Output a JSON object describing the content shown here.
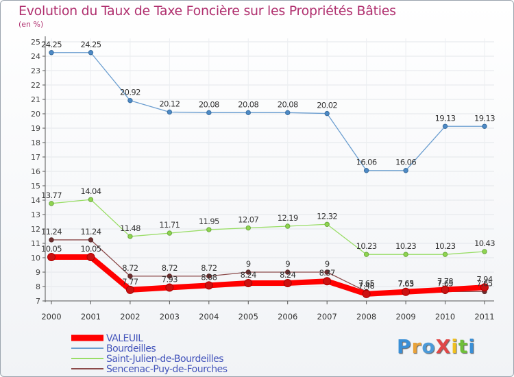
{
  "title": "Evolution du Taux de Taxe Foncière sur les Propriétés Bâties",
  "unit": "(en %)",
  "brand": "ProXiti",
  "chart_data": {
    "type": "line",
    "title": "Evolution du Taux de Taxe Foncière sur les Propriétés Bâties",
    "ylabel": "(en %)",
    "xlabel": "",
    "ylim": [
      7,
      25
    ],
    "yticks": [
      7,
      8,
      9,
      10,
      11,
      12,
      13,
      14,
      15,
      16,
      17,
      18,
      19,
      20,
      21,
      22,
      23,
      24,
      25
    ],
    "categories": [
      "2000",
      "2001",
      "2002",
      "2003",
      "2004",
      "2005",
      "2006",
      "2007",
      "2008",
      "2009",
      "2010",
      "2011"
    ],
    "legend_position": "bottom-left",
    "series": [
      {
        "name": "VALEUIL",
        "color": "#ff0000",
        "values": [
          10.05,
          10.05,
          7.77,
          7.93,
          8.08,
          8.24,
          8.24,
          8.37,
          7.48,
          7.63,
          7.78,
          7.94
        ],
        "labels": [
          "10.05",
          "10.05",
          "7.77",
          "7.93",
          "8.08",
          "8.24",
          "8.24",
          "8.37",
          "7.48",
          "7.63",
          "7.78",
          "7.94"
        ]
      },
      {
        "name": "Bourdeilles",
        "color": "#6b9ed0",
        "values": [
          24.25,
          24.25,
          20.92,
          20.12,
          20.08,
          20.08,
          20.08,
          20.02,
          16.06,
          16.06,
          19.13,
          19.13
        ],
        "labels": [
          "24.25",
          "24.25",
          "20.92",
          "20.12",
          "20.08",
          "20.08",
          "20.08",
          "20.02",
          "16.06",
          "16.06",
          "19.13",
          "19.13"
        ]
      },
      {
        "name": "Saint-Julien-de-Bourdeilles",
        "color": "#99dd66",
        "values": [
          13.77,
          14.04,
          11.48,
          11.71,
          11.95,
          12.07,
          12.19,
          12.32,
          10.23,
          10.23,
          10.23,
          10.43
        ],
        "labels": [
          "13.77",
          "14.04",
          "11.48",
          "11.71",
          "11.95",
          "12.07",
          "12.19",
          "12.32",
          "10.23",
          "10.23",
          "10.23",
          "10.43"
        ]
      },
      {
        "name": "Sencenac-Puy-de-Fourches",
        "color": "#8b4a4a",
        "values": [
          11.24,
          11.24,
          8.72,
          8.72,
          8.72,
          9,
          9,
          9,
          7.65,
          7.65,
          7.65,
          7.65
        ],
        "labels": [
          "11.24",
          "11.24",
          "8.72",
          "8.72",
          "8.72",
          "9",
          "9",
          "9",
          "7.65",
          "7.65",
          "7.65",
          "7.65"
        ]
      }
    ]
  }
}
